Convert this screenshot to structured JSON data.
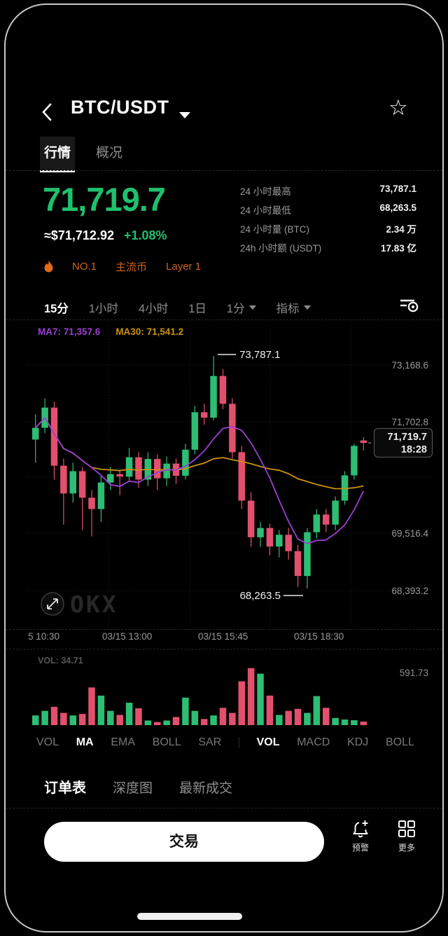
{
  "header": {
    "title": "BTC/USDT"
  },
  "tabs": [
    {
      "label": "行情",
      "active": true
    },
    {
      "label": "概况",
      "active": false
    }
  ],
  "price": {
    "last": "71,719.7",
    "fiat": "≈$71,712.92",
    "change": "+1.08%"
  },
  "stats": [
    {
      "label": "24 小时最高",
      "value": "73,787.1"
    },
    {
      "label": "24 小时最低",
      "value": "68,263.5"
    },
    {
      "label": "24 小时量 (BTC)",
      "value": "2.34 万"
    },
    {
      "label": "24h 小时额 (USDT)",
      "value": "17.83 亿"
    }
  ],
  "badges": [
    "NO.1",
    "主流币",
    "Layer 1"
  ],
  "timeframes": [
    {
      "label": "15分",
      "active": true,
      "caret": false
    },
    {
      "label": "1小时",
      "active": false,
      "caret": false
    },
    {
      "label": "4小时",
      "active": false,
      "caret": false
    },
    {
      "label": "1日",
      "active": false,
      "caret": false
    },
    {
      "label": "1分",
      "active": false,
      "caret": true
    },
    {
      "label": "指标",
      "active": false,
      "caret": true
    }
  ],
  "chart_data": {
    "type": "candlestick",
    "overlays": {
      "ma7_label": "MA7: 71,357.6",
      "ma30_label": "MA30: 71,541.2"
    },
    "y_axis": [
      "73,168.6",
      "71,702.8",
      "69,516.4",
      "68,393.2"
    ],
    "x_axis": [
      "5 10:30",
      "03/15 13:00",
      "03/15 15:45",
      "03/15 18:30"
    ],
    "annotations": {
      "high": "73,787.1",
      "low": "68,263.5"
    },
    "current": {
      "price": "71,719.7",
      "time": "18:28"
    },
    "watermark": "OKX",
    "candles": [
      [
        71800,
        72400,
        71250,
        72080
      ],
      [
        72080,
        72780,
        71950,
        72560
      ],
      [
        72560,
        72700,
        70850,
        71180
      ],
      [
        71180,
        71350,
        69780,
        70520
      ],
      [
        70520,
        71250,
        70300,
        71050
      ],
      [
        71050,
        71150,
        69650,
        70420
      ],
      [
        70420,
        70600,
        69500,
        70150
      ],
      [
        70150,
        70950,
        69850,
        70780
      ],
      [
        70780,
        71150,
        70600,
        70980
      ],
      [
        70980,
        71050,
        70480,
        70920
      ],
      [
        70920,
        71600,
        70800,
        71380
      ],
      [
        71380,
        71500,
        70650,
        70850
      ],
      [
        70850,
        71500,
        70700,
        71340
      ],
      [
        71340,
        71450,
        70600,
        70880
      ],
      [
        70880,
        71400,
        70700,
        71230
      ],
      [
        71230,
        71350,
        70750,
        70940
      ],
      [
        70940,
        71700,
        70850,
        71560
      ],
      [
        71560,
        72600,
        71450,
        72450
      ],
      [
        72450,
        72650,
        72150,
        72320
      ],
      [
        72320,
        73787,
        72250,
        73310
      ],
      [
        73310,
        73470,
        72520,
        72650
      ],
      [
        72650,
        72780,
        71350,
        71500
      ],
      [
        71500,
        71650,
        70150,
        70350
      ],
      [
        70350,
        70550,
        69250,
        69480
      ],
      [
        69480,
        69850,
        69250,
        69700
      ],
      [
        69700,
        69800,
        69050,
        69260
      ],
      [
        69260,
        69650,
        69000,
        69540
      ],
      [
        69540,
        69700,
        68950,
        69150
      ],
      [
        69150,
        69300,
        68300,
        68560
      ],
      [
        68560,
        69700,
        68263,
        69600
      ],
      [
        69600,
        70150,
        69450,
        70020
      ],
      [
        70020,
        70150,
        69600,
        69780
      ],
      [
        69780,
        70450,
        69650,
        70350
      ],
      [
        70350,
        71050,
        70250,
        70950
      ],
      [
        70950,
        71700,
        70850,
        71650
      ],
      [
        71780,
        71860,
        71540,
        71719.7
      ]
    ],
    "volume": [
      95,
      140,
      180,
      120,
      95,
      110,
      370,
      290,
      140,
      100,
      220,
      165,
      45,
      30,
      45,
      80,
      270,
      140,
      60,
      95,
      170,
      120,
      430,
      560,
      505,
      290,
      100,
      140,
      160,
      120,
      285,
      170,
      70,
      55,
      48,
      34.71
    ],
    "volume_label": "VOL: 34.71",
    "volume_axis_max": "591.73"
  },
  "indicator_tabs": {
    "main": [
      {
        "label": "VOL",
        "active": false
      },
      {
        "label": "MA",
        "active": true
      },
      {
        "label": "EMA",
        "active": false
      },
      {
        "label": "BOLL",
        "active": false
      },
      {
        "label": "SAR",
        "active": false
      }
    ],
    "sub": [
      {
        "label": "VOL",
        "active": true
      },
      {
        "label": "MACD",
        "active": false
      },
      {
        "label": "KDJ",
        "active": false
      },
      {
        "label": "BOLL",
        "active": false
      }
    ]
  },
  "bottom_tabs": [
    {
      "label": "订单表",
      "active": true
    },
    {
      "label": "深度图",
      "active": false
    },
    {
      "label": "最新成交",
      "active": false
    }
  ],
  "actions": {
    "trade_label": "交易",
    "alert": {
      "label": "预警"
    },
    "more": {
      "label": "更多"
    }
  },
  "colors": {
    "up": "#2ebd74",
    "down": "#e2506e",
    "price_green": "#1fc06d",
    "ma7": "#9b3fd1",
    "ma30": "#c9920f",
    "badge_orange": "#cf6320",
    "muted": "#8e8e8e",
    "grid": "#202020",
    "axis_text": "#9a9a9a"
  }
}
